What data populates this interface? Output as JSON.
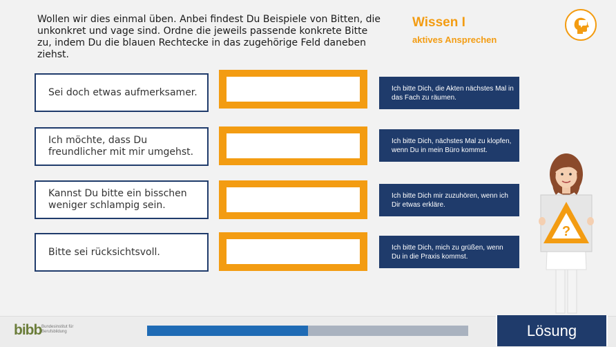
{
  "instructions": "Wollen wir dies einmal üben. Anbei findest Du Beispiele von Bitten, die unkonkret und vage sind. Ordne die jeweils passende konkrete Bitte zu, indem Du die blauen Rechtecke in das zugehörige Feld daneben ziehst.",
  "topic": {
    "title": "Wissen I",
    "subtitle": "aktives Ansprechen"
  },
  "vague_requests": [
    "Sei doch etwas aufmerksamer.",
    "Ich möchte, dass Du freundlicher mit mir umgehst.",
    "Kannst Du bitte ein bisschen weniger schlampig sein.",
    "Bitte sei rücksichtsvoll."
  ],
  "concrete_requests": [
    "Ich bitte Dich, die Akten nächstes Mal in das Fach zu räumen.",
    "Ich bitte Dich, nächstes Mal zu klopfen, wenn Du in mein Büro kommst.",
    "Ich bitte Dich mir zuzuhören, wenn ich Dir etwas erkläre.",
    "Ich bitte Dich, mich zu grüßen, wenn Du in die Praxis kommst."
  ],
  "footer": {
    "logo_mark": "bibb",
    "logo_text": "Bundesinstitut für Berufsbildung",
    "progress": 0.5,
    "solution_label": "Lösung"
  },
  "icons": {
    "topic_icon": "head-speech-bubble-icon",
    "sign_icon": "warning-question-icon"
  },
  "colors": {
    "accent_orange": "#f39c12",
    "navy": "#1f3b6b",
    "progress_blue": "#1f6bb5"
  }
}
